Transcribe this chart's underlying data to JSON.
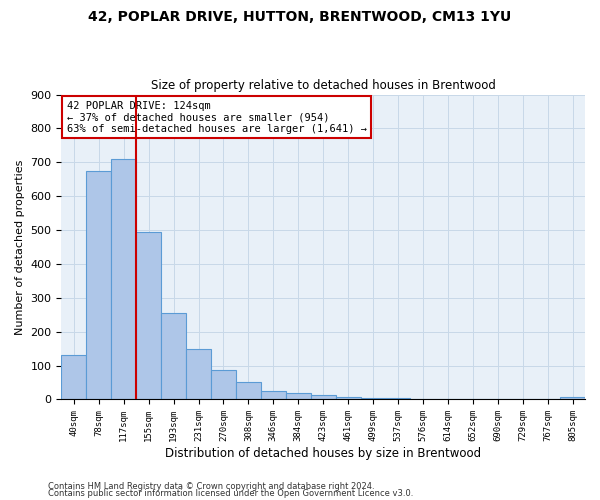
{
  "title_line1": "42, POPLAR DRIVE, HUTTON, BRENTWOOD, CM13 1YU",
  "title_line2": "Size of property relative to detached houses in Brentwood",
  "xlabel": "Distribution of detached houses by size in Brentwood",
  "ylabel": "Number of detached properties",
  "bar_labels": [
    "40sqm",
    "78sqm",
    "117sqm",
    "155sqm",
    "193sqm",
    "231sqm",
    "270sqm",
    "308sqm",
    "346sqm",
    "384sqm",
    "423sqm",
    "461sqm",
    "499sqm",
    "537sqm",
    "576sqm",
    "614sqm",
    "652sqm",
    "690sqm",
    "729sqm",
    "767sqm",
    "805sqm"
  ],
  "bar_values": [
    130,
    675,
    710,
    495,
    255,
    150,
    88,
    52,
    25,
    18,
    12,
    8,
    5,
    3,
    2,
    2,
    1,
    1,
    0,
    0,
    8
  ],
  "bar_color": "#aec6e8",
  "bar_edge_color": "#5b9bd5",
  "vline_x": 2.5,
  "vline_color": "#cc0000",
  "annotation_text": "42 POPLAR DRIVE: 124sqm\n← 37% of detached houses are smaller (954)\n63% of semi-detached houses are larger (1,641) →",
  "annotation_box_color": "#ffffff",
  "annotation_box_edge": "#cc0000",
  "ylim": [
    0,
    900
  ],
  "yticks": [
    0,
    100,
    200,
    300,
    400,
    500,
    600,
    700,
    800,
    900
  ],
  "background_color": "#ffffff",
  "ax_background_color": "#e8f0f8",
  "grid_color": "#c8d8e8",
  "footer_line1": "Contains HM Land Registry data © Crown copyright and database right 2024.",
  "footer_line2": "Contains public sector information licensed under the Open Government Licence v3.0."
}
